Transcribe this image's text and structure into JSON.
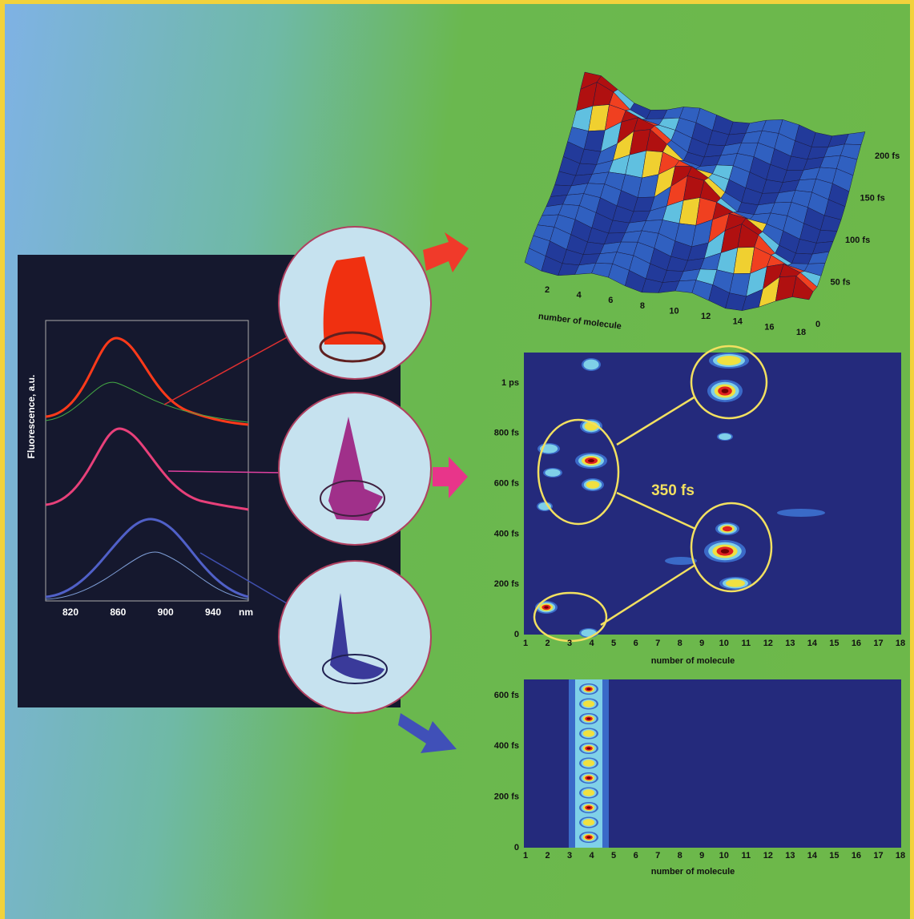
{
  "spectra": {
    "x_ticks": [
      "820",
      "860",
      "900",
      "940"
    ],
    "x_unit": "nm",
    "y_label": "Fluorescence, a.u."
  },
  "surface": {
    "x_ticks": [
      "2",
      "4",
      "6",
      "8",
      "10",
      "12",
      "14",
      "16",
      "18"
    ],
    "y_ticks": [
      "0",
      "50 fs",
      "100 fs",
      "150 fs",
      "200 fs"
    ],
    "x_label": "number of molecule"
  },
  "contour_top": {
    "y_ticks": [
      "0",
      "200 fs",
      "400 fs",
      "600 fs",
      "800 fs",
      "1 ps"
    ],
    "x_ticks": [
      "1",
      "2",
      "3",
      "4",
      "5",
      "6",
      "7",
      "8",
      "9",
      "10",
      "11",
      "12",
      "13",
      "14",
      "15",
      "16",
      "17",
      "18"
    ],
    "x_label": "number of molecule",
    "annotation": "350 fs"
  },
  "contour_bottom": {
    "y_ticks": [
      "0",
      "200 fs",
      "400 fs",
      "600 fs"
    ],
    "x_ticks": [
      "1",
      "2",
      "3",
      "4",
      "5",
      "6",
      "7",
      "8",
      "9",
      "10",
      "11",
      "12",
      "13",
      "14",
      "15",
      "16",
      "17",
      "18"
    ],
    "x_label": "number of molecule"
  }
}
